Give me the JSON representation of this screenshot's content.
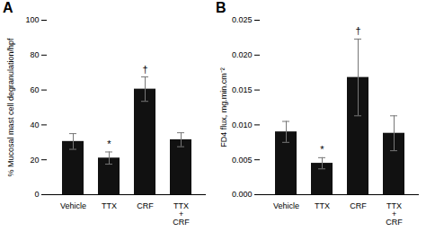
{
  "chart_data": [
    {
      "type": "bar",
      "title": "A",
      "categories": [
        "Vehicle",
        "TTX",
        "CRF",
        "TTX\n+\nCRF"
      ],
      "values": [
        30.5,
        21.0,
        60.5,
        31.5
      ],
      "errors": [
        4.5,
        3.5,
        7.0,
        4.0
      ],
      "ylabel": "% Mucosal mast cell degranulation/hpf",
      "ylim": [
        0,
        100
      ],
      "yticks": [
        0,
        20,
        40,
        60,
        80,
        100
      ],
      "annotations": [
        {
          "category": "TTX",
          "text": "*"
        },
        {
          "category": "CRF",
          "text": "†"
        }
      ],
      "color": "#111111",
      "grid": false
    },
    {
      "type": "bar",
      "title": "B",
      "categories": [
        "Vehicle",
        "TTX",
        "CRF",
        "TTX\n+\nCRF"
      ],
      "values": [
        0.009,
        0.0045,
        0.0168,
        0.0088
      ],
      "errors": [
        0.0015,
        0.0008,
        0.0055,
        0.0025
      ],
      "ylabel": "FD4 flux, mg.min.cm⁻²",
      "ylim": [
        0,
        0.025
      ],
      "yticks": [
        {
          "value": 0,
          "label": "0.000"
        },
        {
          "value": 0.005,
          "label": "0.005"
        },
        {
          "value": 0.01,
          "label": "0.010"
        },
        {
          "value": 0.015,
          "label": "0.015"
        },
        {
          "value": 0.02,
          "label": "0.020"
        },
        {
          "value": 0.025,
          "label": "0.025"
        }
      ],
      "annotations": [
        {
          "category": "TTX",
          "text": "*"
        },
        {
          "category": "CRF",
          "text": "†"
        }
      ],
      "color": "#111111",
      "grid": false
    }
  ]
}
